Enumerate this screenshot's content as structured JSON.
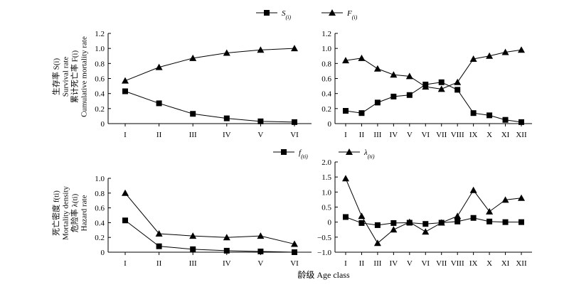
{
  "xlabel": "龄级 Age class",
  "ylabels": {
    "top": [
      "生存率 S(i)",
      "Survival rate",
      "累计死亡率 F(i)",
      "Cumulative mortality rate"
    ],
    "bottom": [
      "死亡密度 f(ti)",
      "Mortality density",
      "危险率 λ(ti)",
      "Hazard rate"
    ]
  },
  "legends": {
    "top": [
      {
        "marker": "square",
        "base": "S",
        "sub": "(i)"
      },
      {
        "marker": "triangle",
        "base": "F",
        "sub": "(i)"
      }
    ],
    "bottom": [
      {
        "marker": "square",
        "base": "f",
        "sub": "(ti)"
      },
      {
        "marker": "triangle",
        "base": "λ",
        "sub": "(ti)"
      }
    ]
  },
  "chart_data": [
    {
      "type": "line",
      "categories": [
        "I",
        "II",
        "III",
        "IV",
        "V",
        "VI"
      ],
      "ylim": [
        0,
        1.2
      ],
      "yticks": [
        "0",
        "0.2",
        "0.4",
        "0.6",
        "0.8",
        "1.0",
        "1.2"
      ],
      "series": [
        {
          "name": "S(i)",
          "marker": "square",
          "values": [
            0.43,
            0.27,
            0.13,
            0.07,
            0.03,
            0.02
          ]
        },
        {
          "name": "F(i)",
          "marker": "triangle",
          "values": [
            0.57,
            0.75,
            0.87,
            0.94,
            0.98,
            1.0
          ]
        }
      ]
    },
    {
      "type": "line",
      "categories": [
        "I",
        "II",
        "III",
        "IV",
        "V",
        "VI",
        "VII",
        "VIII",
        "IX",
        "X",
        "XI",
        "XII"
      ],
      "ylim": [
        0,
        1.2
      ],
      "yticks": [
        "0",
        "0.2",
        "0.4",
        "0.6",
        "0.8",
        "1.0",
        "1.2"
      ],
      "series": [
        {
          "name": "S(i)",
          "marker": "square",
          "values": [
            0.17,
            0.14,
            0.28,
            0.36,
            0.38,
            0.52,
            0.55,
            0.45,
            0.14,
            0.11,
            0.05,
            0.02
          ]
        },
        {
          "name": "F(i)",
          "marker": "triangle",
          "values": [
            0.84,
            0.87,
            0.73,
            0.65,
            0.63,
            0.49,
            0.46,
            0.55,
            0.86,
            0.9,
            0.95,
            0.98
          ]
        }
      ]
    },
    {
      "type": "line",
      "categories": [
        "I",
        "II",
        "III",
        "IV",
        "V",
        "VI"
      ],
      "ylim": [
        0,
        1.0
      ],
      "yticks": [
        "0",
        "0.2",
        "0.4",
        "0.6",
        "0.8",
        "1.0"
      ],
      "series": [
        {
          "name": "f(ti)",
          "marker": "square",
          "values": [
            0.43,
            0.08,
            0.04,
            0.02,
            0.01,
            0.0
          ]
        },
        {
          "name": "λ(ti)",
          "marker": "triangle",
          "values": [
            0.8,
            0.25,
            0.22,
            0.2,
            0.22,
            0.11
          ]
        }
      ]
    },
    {
      "type": "line",
      "categories": [
        "I",
        "II",
        "III",
        "IV",
        "V",
        "VI",
        "VII",
        "VIII",
        "IX",
        "X",
        "XI",
        "XII"
      ],
      "ylim": [
        -1.0,
        2.0
      ],
      "yticks": [
        "−1.0",
        "−0.5",
        "0",
        "0.5",
        "1.0",
        "1.5",
        "2.0"
      ],
      "series": [
        {
          "name": "f(ti)",
          "marker": "square",
          "values": [
            0.17,
            -0.03,
            -0.1,
            -0.03,
            -0.02,
            -0.06,
            -0.02,
            0.02,
            0.14,
            0.02,
            0.0,
            0.0
          ]
        },
        {
          "name": "λ(ti)",
          "marker": "triangle",
          "values": [
            1.45,
            0.2,
            -0.7,
            -0.25,
            0.0,
            -0.32,
            -0.02,
            0.2,
            1.06,
            0.35,
            0.74,
            0.8
          ]
        }
      ]
    }
  ]
}
